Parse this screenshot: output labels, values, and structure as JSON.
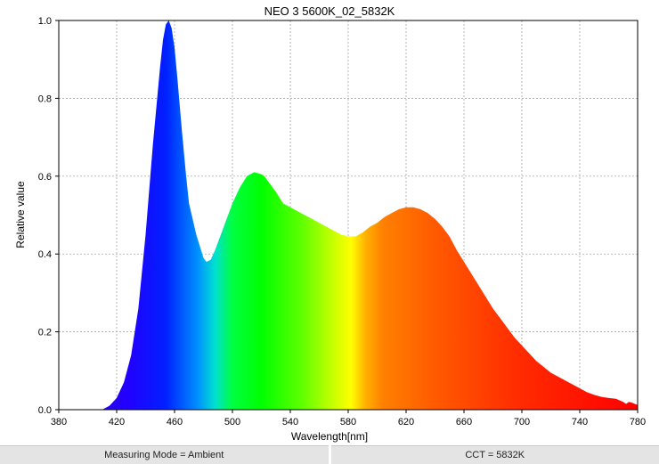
{
  "chart_data": {
    "type": "area",
    "title": "NEO 3 5600K_02_5832K",
    "xlabel": "Wavelength[nm]",
    "ylabel": "Relative value",
    "xlim": [
      380,
      780
    ],
    "ylim": [
      0,
      1
    ],
    "x_ticks": [
      380,
      420,
      460,
      500,
      540,
      580,
      620,
      660,
      700,
      740,
      780
    ],
    "y_ticks": [
      0.0,
      0.2,
      0.4,
      0.6,
      0.8,
      1.0
    ],
    "y_tick_labels": [
      "0.0",
      "0.2",
      "0.4",
      "0.6",
      "0.8",
      "1.0"
    ],
    "grid": true,
    "fill": "visible-spectrum colors",
    "x": [
      380,
      400,
      410,
      415,
      420,
      425,
      430,
      435,
      440,
      445,
      450,
      452,
      454,
      456,
      458,
      460,
      462,
      465,
      468,
      470,
      475,
      480,
      482,
      485,
      488,
      490,
      495,
      500,
      505,
      510,
      515,
      520,
      522,
      525,
      530,
      535,
      540,
      545,
      550,
      555,
      560,
      565,
      570,
      575,
      580,
      585,
      590,
      595,
      600,
      605,
      610,
      615,
      620,
      625,
      630,
      635,
      640,
      645,
      650,
      655,
      660,
      665,
      670,
      675,
      680,
      685,
      690,
      695,
      700,
      705,
      710,
      715,
      720,
      725,
      730,
      735,
      740,
      745,
      750,
      755,
      760,
      765,
      770,
      772,
      774,
      776,
      778,
      780
    ],
    "y": [
      0,
      0,
      0,
      0.01,
      0.03,
      0.07,
      0.14,
      0.26,
      0.45,
      0.68,
      0.88,
      0.95,
      0.99,
      1.0,
      0.98,
      0.93,
      0.85,
      0.72,
      0.6,
      0.53,
      0.45,
      0.39,
      0.38,
      0.385,
      0.41,
      0.43,
      0.48,
      0.53,
      0.57,
      0.6,
      0.61,
      0.605,
      0.6,
      0.585,
      0.56,
      0.53,
      0.52,
      0.51,
      0.5,
      0.49,
      0.48,
      0.47,
      0.46,
      0.45,
      0.445,
      0.445,
      0.455,
      0.47,
      0.48,
      0.495,
      0.505,
      0.515,
      0.52,
      0.52,
      0.515,
      0.505,
      0.49,
      0.47,
      0.445,
      0.41,
      0.38,
      0.35,
      0.32,
      0.29,
      0.26,
      0.235,
      0.21,
      0.185,
      0.165,
      0.145,
      0.125,
      0.11,
      0.095,
      0.085,
      0.075,
      0.065,
      0.055,
      0.045,
      0.038,
      0.033,
      0.03,
      0.028,
      0.02,
      0.015,
      0.02,
      0.018,
      0.015,
      0.012
    ]
  },
  "footer": {
    "measuring_mode": "Measuring Mode = Ambient",
    "cct": "CCT = 5832K"
  },
  "colors": {
    "frame": "#000000",
    "grid": "#9a9a9a",
    "footer_bg": "#e4e4e4"
  }
}
